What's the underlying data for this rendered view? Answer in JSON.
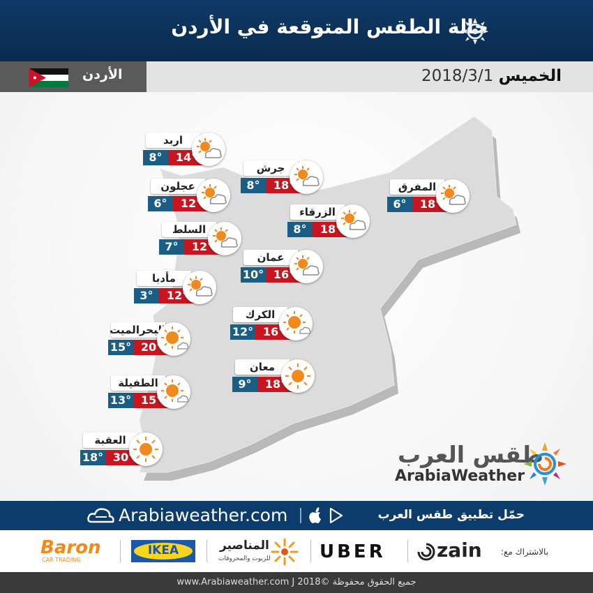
{
  "header": {
    "title": "حالة الطقس المتوقعة في الأردن",
    "logo_icon": "arabiaweather-sun-icon"
  },
  "info_bar": {
    "country": "الأردن",
    "day": "الخميس",
    "date": "2018/3/1"
  },
  "cities": [
    {
      "name": "اربد",
      "max": "14°",
      "min": "8°",
      "icon": "partly-cloudy-icon"
    },
    {
      "name": "جرش",
      "max": "18°",
      "min": "8°",
      "icon": "partly-cloudy-icon"
    },
    {
      "name": "عجلون",
      "max": "12°",
      "min": "6°",
      "icon": "partly-cloudy-icon"
    },
    {
      "name": "المفرق",
      "max": "18°",
      "min": "6°",
      "icon": "partly-cloudy-icon"
    },
    {
      "name": "الزرقاء",
      "max": "18°",
      "min": "8°",
      "icon": "partly-cloudy-icon"
    },
    {
      "name": "السلط",
      "max": "12°",
      "min": "7°",
      "icon": "partly-cloudy-icon"
    },
    {
      "name": "عمان",
      "max": "16°",
      "min": "10°",
      "icon": "partly-cloudy-icon"
    },
    {
      "name": "مأدبا",
      "max": "12°",
      "min": "3°",
      "icon": "partly-cloudy-icon"
    },
    {
      "name": "الكرك",
      "max": "16°",
      "min": "12°",
      "icon": "sunny-small-cloud-icon"
    },
    {
      "name": "البحرالميت",
      "max": "20°",
      "min": "15°",
      "icon": "sunny-small-cloud-icon"
    },
    {
      "name": "معان",
      "max": "18°",
      "min": "9°",
      "icon": "sunny-icon"
    },
    {
      "name": "الطفيلة",
      "max": "15°",
      "min": "13°",
      "icon": "sunny-small-cloud-icon"
    },
    {
      "name": "العقبة",
      "max": "30°",
      "min": "18°",
      "icon": "sunny-icon"
    }
  ],
  "brand": {
    "arabic": "طقس العرب",
    "english": "ArabiaWeather"
  },
  "app_bar": {
    "url": "Arabiaweather.com",
    "download_text": "حمّل تطبيق طقس العرب"
  },
  "sponsors": {
    "label": "بالاشتراك مع:",
    "items": [
      "zain",
      "UBER",
      "المناصير",
      "للزيوت والمحروقات",
      "IKEA",
      "Baron",
      "CAR TRADING"
    ]
  },
  "footer": {
    "copyright": "www.Arabiaweather.com J جميع الحقوق محفوظة ©2018"
  },
  "colors": {
    "header_bg": "#0c3c6b",
    "max_temp_bg": "#c8151f",
    "min_temp_bg": "#1a5d85",
    "sun": "#f08a1c",
    "map_fill": "#dcdcdc"
  }
}
